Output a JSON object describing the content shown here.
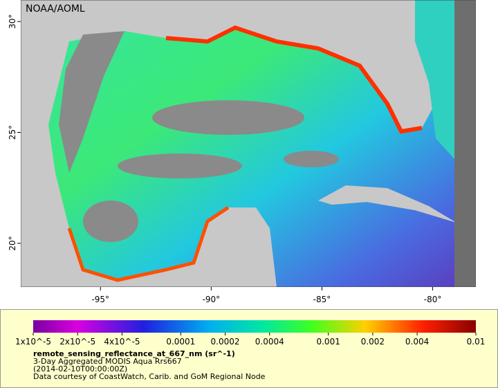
{
  "map": {
    "watermark": "NOAA/AOML",
    "xlim": [
      -98.6,
      -78.05
    ],
    "ylim": [
      18.03,
      30.97
    ],
    "lat_ticks": [
      {
        "value": 30,
        "label": "30°"
      },
      {
        "value": 25,
        "label": "25°"
      },
      {
        "value": 20,
        "label": "20°"
      }
    ],
    "lon_ticks": [
      {
        "value": -95,
        "label": "-95°"
      },
      {
        "value": -90,
        "label": "-90°"
      },
      {
        "value": -85,
        "label": "-85°"
      },
      {
        "value": -80,
        "label": "-80°"
      }
    ]
  },
  "colorbar": {
    "scale": "log",
    "lim": [
      1e-05,
      0.01
    ],
    "ticks": [
      {
        "value": 1e-05,
        "label": "1x10^-5"
      },
      {
        "value": 2e-05,
        "label": "2x10^-5"
      },
      {
        "value": 4e-05,
        "label": "4x10^-5"
      },
      0.0001,
      0.0002,
      0.0004,
      0.001,
      0.002,
      0.004,
      0.01
    ],
    "variable": "remote_sensing_reflectance_at_667_nm (sr^-1)",
    "title": "3-Day Aggregated MODIS Aqua Rrs667",
    "time": "(2014-02-10T00:00:00Z)",
    "credit": "Data courtesy of CoastWatch, Carib. and GoM Regional Node"
  }
}
